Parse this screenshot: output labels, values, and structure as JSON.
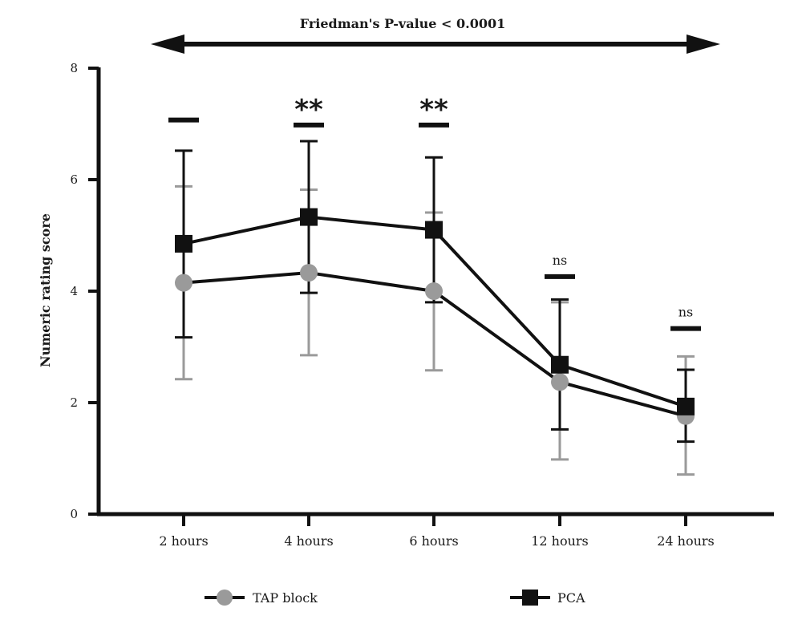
{
  "chart_data": {
    "type": "line",
    "title": "Friedman's P-value < 0.0001",
    "xlabel": "",
    "ylabel": "Numeric rating score",
    "categories": [
      "2 hours",
      "4 hours",
      "6 hours",
      "12 hours",
      "24 hours"
    ],
    "ylim": [
      0,
      8
    ],
    "yticks": [
      0,
      2,
      4,
      6,
      8
    ],
    "series": [
      {
        "name": "PCA",
        "marker": "square",
        "color": "#111111",
        "values": [
          4.85,
          5.33,
          5.1,
          2.68,
          1.93
        ],
        "err_low": [
          3.17,
          3.97,
          3.8,
          1.52,
          1.3
        ],
        "err_high": [
          6.52,
          6.69,
          6.4,
          3.85,
          2.59
        ]
      },
      {
        "name": "TAP block",
        "marker": "circle",
        "color": "#9a9a9a",
        "values": [
          4.15,
          4.33,
          4.0,
          2.37,
          1.76
        ],
        "err_low": [
          2.42,
          2.85,
          2.58,
          0.98,
          0.71
        ],
        "err_high": [
          5.88,
          5.82,
          5.41,
          3.8,
          2.83
        ]
      }
    ],
    "significance": [
      {
        "category": "2 hours",
        "label": "",
        "level": 7.07
      },
      {
        "category": "4 hours",
        "label": "**",
        "level": 6.98
      },
      {
        "category": "6 hours",
        "label": "**",
        "level": 6.98
      },
      {
        "category": "12 hours",
        "label": "ns",
        "level": 4.26
      },
      {
        "category": "24 hours",
        "label": "ns",
        "level": 3.33
      }
    ],
    "legend": [
      "TAP block",
      "PCA"
    ],
    "legend_position": "bottom"
  }
}
